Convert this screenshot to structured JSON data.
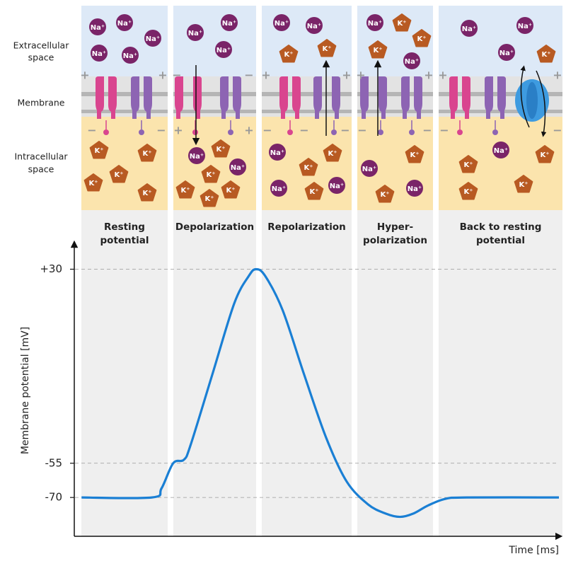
{
  "left_labels": {
    "extracellular": [
      "Extracellular",
      "space"
    ],
    "membrane": "Membrane",
    "intracellular": [
      "Intracellular",
      "space"
    ]
  },
  "ions": {
    "sodium": "Na⁺",
    "potassium": "K⁺"
  },
  "charges": {
    "positive": "+",
    "negative": "−"
  },
  "phases": [
    [
      "Resting",
      "potential"
    ],
    [
      "Depolarization"
    ],
    [
      "Repolarization"
    ],
    [
      "Hyper-",
      "polarization"
    ],
    [
      "Back to resting",
      "potential"
    ]
  ],
  "chart_data": {
    "type": "line",
    "y_label": "Membrane potential [mV]",
    "x_label": "Time [ms]",
    "x": [
      1.5,
      16,
      18,
      20.4,
      22.6,
      24,
      28.5,
      33,
      36,
      37.5,
      39.4,
      43,
      47.4,
      52,
      56.2,
      60.6,
      64.2,
      67.2,
      70,
      73,
      76.6,
      81,
      100
    ],
    "series": [
      {
        "color": "#1a7fd4",
        "values": [
          -70,
          -70,
          -66,
          -55,
          -53.5,
          -47,
          -16,
          15,
          27,
          30,
          27,
          12,
          -16,
          -44,
          -63,
          -73,
          -77,
          -78.5,
          -77,
          -73.5,
          -70.6,
          -70,
          -70
        ]
      }
    ],
    "xlim": [
      0,
      100
    ],
    "ylim": [
      -87,
      41
    ],
    "yticks": [
      {
        "value": 30,
        "label": "+30"
      },
      -55,
      -70
    ],
    "grid": true
  }
}
